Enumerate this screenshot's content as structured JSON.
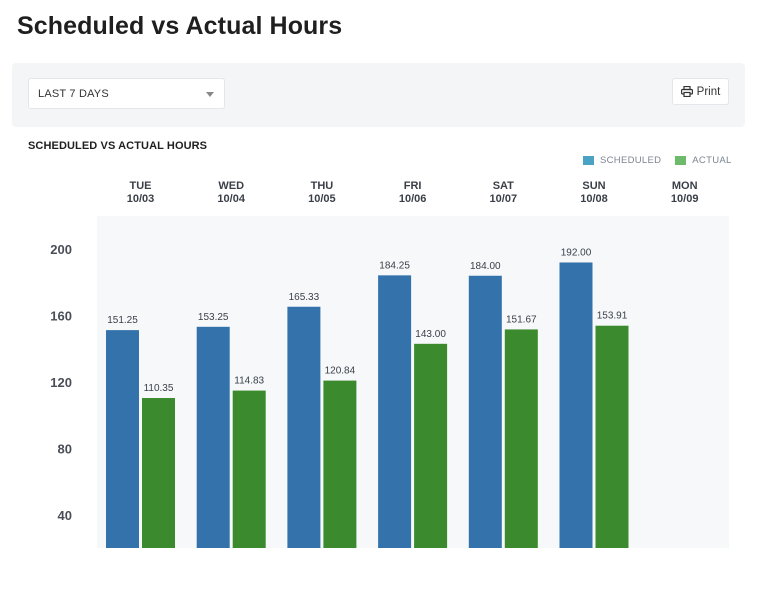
{
  "page": {
    "title": "Scheduled vs Actual Hours"
  },
  "filters": {
    "range_value": "LAST 7 DAYS",
    "print_label": "Print",
    "print_icon": "printer-icon"
  },
  "colors": {
    "scheduled": "#3372ab",
    "actual": "#3b8a2e",
    "plot_bg": "#f6f8fa"
  },
  "chart_data": {
    "type": "bar",
    "title": "SCHEDULED VS ACTUAL HOURS",
    "legend_position": "top-right",
    "categories": [
      {
        "day": "TUE",
        "date": "10/03"
      },
      {
        "day": "WED",
        "date": "10/04"
      },
      {
        "day": "THU",
        "date": "10/05"
      },
      {
        "day": "FRI",
        "date": "10/06"
      },
      {
        "day": "SAT",
        "date": "10/07"
      },
      {
        "day": "SUN",
        "date": "10/08"
      },
      {
        "day": "MON",
        "date": "10/09"
      }
    ],
    "series": [
      {
        "name": "SCHEDULED",
        "values": [
          151.25,
          153.25,
          165.33,
          184.25,
          184.0,
          192.0,
          null
        ],
        "labels": [
          "151.25",
          "153.25",
          "165.33",
          "184.25",
          "184.00",
          "192.00",
          ""
        ]
      },
      {
        "name": "ACTUAL",
        "values": [
          110.35,
          114.83,
          120.84,
          143.0,
          151.67,
          153.91,
          null
        ],
        "labels": [
          "110.35",
          "114.83",
          "120.84",
          "143.00",
          "151.67",
          "153.91",
          ""
        ]
      }
    ],
    "y_ticks": [
      40,
      80,
      120,
      160,
      200
    ],
    "ylim": [
      20,
      220
    ],
    "grid": false
  }
}
